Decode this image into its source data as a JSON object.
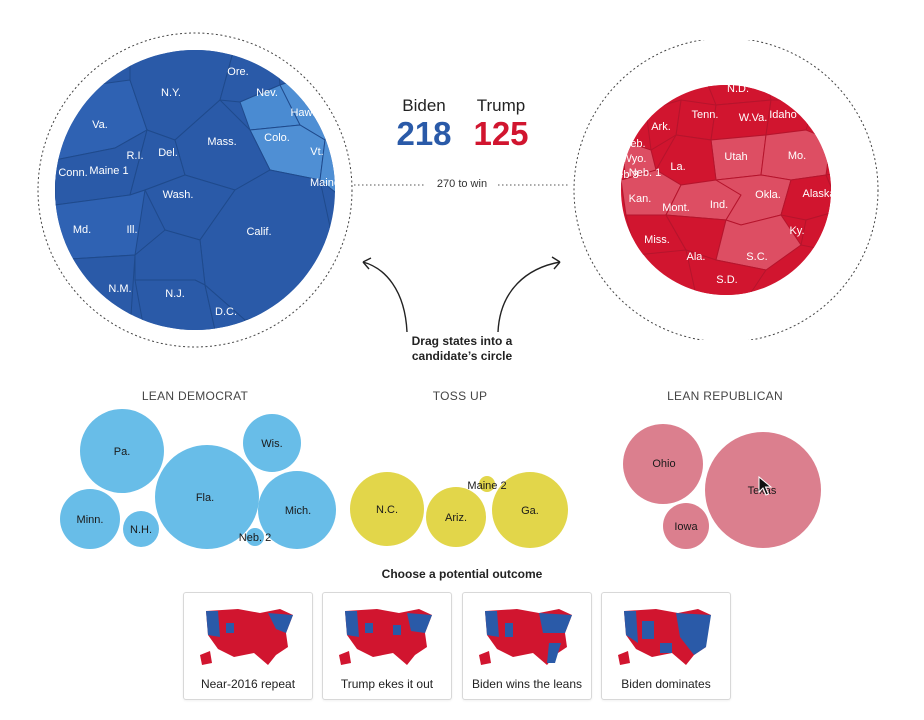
{
  "candidates": {
    "biden": {
      "name": "Biden",
      "count": "218",
      "color": "#2a5aa8"
    },
    "trump": {
      "name": "Trump",
      "count": "125",
      "color": "#d1152f"
    }
  },
  "win_label": "270 to win",
  "instruction": [
    "Drag states into a",
    "candidate’s circle"
  ],
  "biden_states": [
    "N.Y.",
    "Ore.",
    "Nev.",
    "Hawaii",
    "Va.",
    "Colo.",
    "Vt.",
    "R.I.",
    "Del.",
    "Mass.",
    "Maine",
    "Conn.",
    "Maine 1",
    "Wash.",
    "Md.",
    "Ill.",
    "Calif.",
    "N.M.",
    "N.J.",
    "D.C."
  ],
  "trump_states": [
    "N.D.",
    "Tenn.",
    "W.Va.",
    "Idaho",
    "Ark.",
    "Neb.",
    "Wyo.",
    "Neb. 1",
    "Neb 3",
    "La.",
    "Utah",
    "Mo.",
    "Kan.",
    "Mont.",
    "Ind.",
    "Okla.",
    "Alaska",
    "Miss.",
    "Ky.",
    "Ala.",
    "S.C.",
    "S.D."
  ],
  "groups": {
    "lean_dem": {
      "label": "LEAN DEMOCRAT",
      "color": "#68bde8",
      "states": [
        "Pa.",
        "Wis.",
        "Fla.",
        "Minn.",
        "N.H.",
        "Mich.",
        "Neb. 2"
      ]
    },
    "toss_up": {
      "label": "TOSS UP",
      "color": "#e2d64a",
      "states": [
        "N.C.",
        "Maine 2",
        "Ariz.",
        "Ga."
      ]
    },
    "lean_rep": {
      "label": "LEAN REPUBLICAN",
      "color": "#db7f8e",
      "states": [
        "Ohio",
        "Texas",
        "Iowa"
      ]
    }
  },
  "outcomes": {
    "title": "Choose a potential outcome",
    "items": [
      "Near-2016 repeat",
      "Trump ekes it out",
      "Biden wins the leans",
      "Biden dominates"
    ]
  },
  "icons": {
    "cursor": "arrow-cursor-icon",
    "arrows": "curved-arrow-icon"
  }
}
